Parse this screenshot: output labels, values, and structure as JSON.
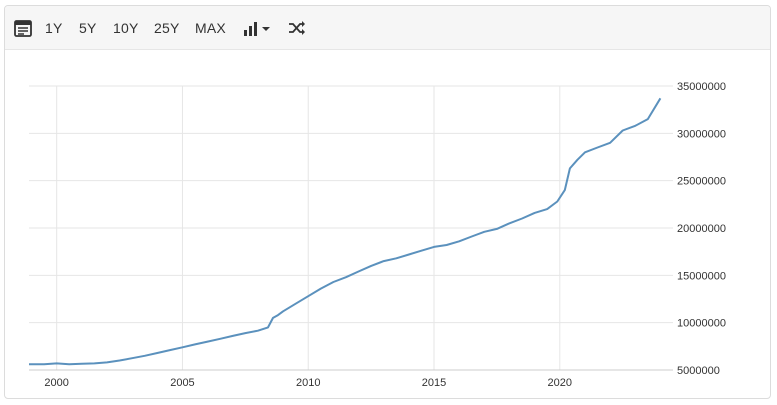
{
  "toolbar": {
    "buttons": [
      "1Y",
      "5Y",
      "10Y",
      "25Y",
      "MAX"
    ],
    "icons": [
      "calendar-icon",
      "bar-chart-icon",
      "caret-down-icon",
      "shuffle-icon"
    ]
  },
  "colors": {
    "line": "#5b91bd",
    "grid": "#e6e6e6",
    "axis_text": "#333333"
  },
  "chart_data": {
    "type": "line",
    "title": "",
    "xlabel": "",
    "ylabel": "",
    "x_ticks": [
      "2000",
      "2005",
      "2010",
      "2015",
      "2020"
    ],
    "y_ticks": [
      "5000000",
      "10000000",
      "15000000",
      "20000000",
      "25000000",
      "30000000",
      "35000000"
    ],
    "xlim": [
      1998.9,
      2024.5
    ],
    "ylim": [
      5000000,
      35000000
    ],
    "y_axis_position": "right",
    "grid": true,
    "series": [
      {
        "x": [
          1998.9,
          1999.5,
          2000.0,
          2000.5,
          2001.0,
          2001.5,
          2002.0,
          2002.5,
          2003.0,
          2003.5,
          2004.0,
          2004.5,
          2005.0,
          2005.5,
          2006.0,
          2006.5,
          2007.0,
          2007.5,
          2008.0,
          2008.4,
          2008.6,
          2008.8,
          2009.0,
          2009.5,
          2010.0,
          2010.5,
          2011.0,
          2011.5,
          2012.0,
          2012.5,
          2013.0,
          2013.5,
          2014.0,
          2014.5,
          2015.0,
          2015.5,
          2016.0,
          2016.5,
          2017.0,
          2017.5,
          2018.0,
          2018.5,
          2019.0,
          2019.5,
          2019.9,
          2020.2,
          2020.4,
          2020.7,
          2021.0,
          2021.5,
          2022.0,
          2022.5,
          2023.0,
          2023.5,
          2024.0
        ],
        "y": [
          5600000,
          5600000,
          5700000,
          5600000,
          5650000,
          5700000,
          5800000,
          6000000,
          6250000,
          6500000,
          6800000,
          7100000,
          7400000,
          7700000,
          8000000,
          8300000,
          8600000,
          8900000,
          9150000,
          9500000,
          10500000,
          10800000,
          11200000,
          12000000,
          12800000,
          13600000,
          14300000,
          14800000,
          15400000,
          16000000,
          16500000,
          16800000,
          17200000,
          17600000,
          18000000,
          18200000,
          18600000,
          19100000,
          19600000,
          19900000,
          20500000,
          21000000,
          21600000,
          22000000,
          22800000,
          24000000,
          26300000,
          27200000,
          28000000,
          28500000,
          29000000,
          30300000,
          30800000,
          31500000,
          33700000
        ]
      }
    ]
  }
}
